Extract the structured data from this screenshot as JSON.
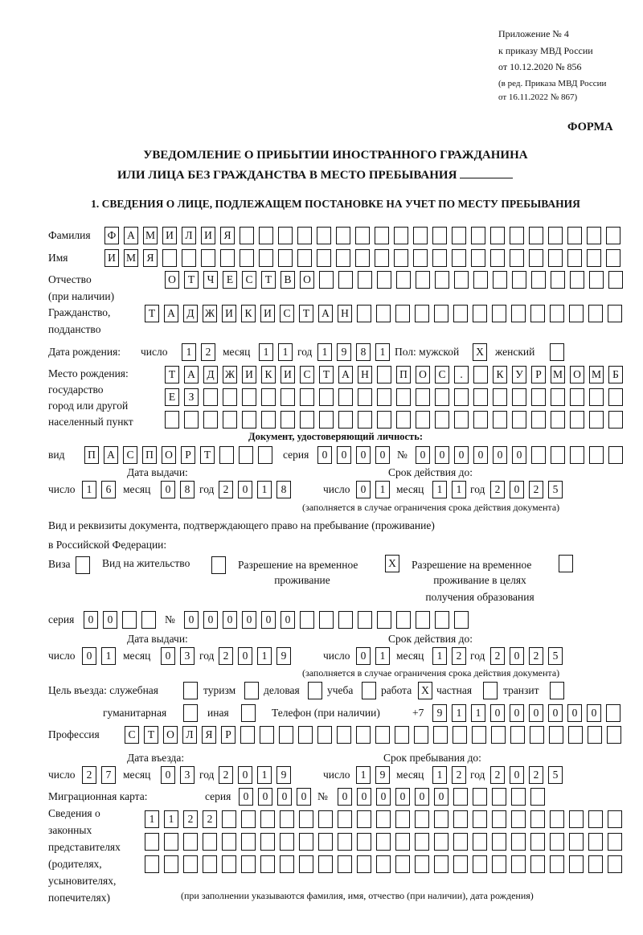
{
  "header": {
    "annex": [
      "Приложение № 4",
      "к приказу МВД России",
      "от 10.12.2020 № 856"
    ],
    "edition": [
      "(в ред. Приказа МВД России",
      "от 16.11.2022 № 867)"
    ],
    "form_label": "ФОРМА",
    "title_line1": "УВЕДОМЛЕНИЕ О ПРИБЫТИИ ИНОСТРАННОГО ГРАЖДАНИНА",
    "title_line2": "ИЛИ ЛИЦА БЕЗ ГРАЖДАНСТВА В МЕСТО ПРЕБЫВАНИЯ",
    "section1": "1. СВЕДЕНИЯ О ЛИЦЕ, ПОДЛЕЖАЩЕМ ПОСТАНОВКЕ НА УЧЕТ ПО МЕСТУ ПРЕБЫВАНИЯ"
  },
  "labels": {
    "surname": "Фамилия",
    "name": "Имя",
    "patronymic": "Отчество",
    "patronymic_note": "(при наличии)",
    "citizenship": "Гражданство,",
    "citizenship2": "подданство",
    "birth_date": "Дата рождения:",
    "day": "число",
    "month": "месяц",
    "year": "год",
    "sex": "Пол: мужской",
    "female": "женский",
    "birthplace": [
      "Место рождения:",
      "государство",
      "город или другой",
      "населенный пункт"
    ],
    "id_doc": "Документ, удостоверяющий личность:",
    "kind": "вид",
    "series": "серия",
    "number": "№",
    "issue_date": "Дата выдачи:",
    "valid_until": "Срок действия до:",
    "validity_note": "(заполняется в случае ограничения срока действия документа)",
    "residence_doc": "Вид и реквизиты документа, подтверждающего право на пребывание (проживание)",
    "residence_doc2": "в Российской Федерации:",
    "visa": "Виза",
    "residence_permit": "Вид на жительство",
    "temp_residence": [
      "Разрешение на временное",
      "проживание"
    ],
    "temp_residence_edu": [
      "Разрешение на временное",
      "проживание в целях",
      "получения образования"
    ],
    "purpose": "Цель въезда: служебная",
    "tourism": "туризм",
    "business": "деловая",
    "study": "учеба",
    "work": "работа",
    "private": "частная",
    "transit": "транзит",
    "humanitarian": "гуманитарная",
    "other": "иная",
    "phone": "Телефон (при наличии)",
    "phone_prefix": "+7",
    "profession": "Профессия",
    "entry_date": "Дата въезда:",
    "stay_until": "Срок пребывания до:",
    "migration_card": "Миграционная карта:",
    "representatives": [
      "Сведения о",
      "законных",
      "представителях",
      "(родителях,",
      "усыновителях,",
      "попечителях)"
    ],
    "representatives_note": "(при заполнении указываются фамилия, имя, отчество (при наличии), дата рождения)"
  },
  "person": {
    "surname": "ФАМИЛИЯ",
    "name": "ИМЯ",
    "patronymic": "ОТЧЕСТВО",
    "citizenship": "ТАДЖИКИСТАН",
    "birth_day": "12",
    "birth_month": "11",
    "birth_year": "1981",
    "sex_male": "X",
    "sex_female": "",
    "birthplace_line1": "ТАДЖИКИСТАН ПОС. КУРМОМБ",
    "birthplace_line2": "ЕЗ",
    "birthplace_line3": ""
  },
  "id_document": {
    "kind": "ПАСПОРТ",
    "series": "0000",
    "number": "000000",
    "issue_day": "16",
    "issue_month": "08",
    "issue_year": "2018",
    "valid_day": "01",
    "valid_month": "11",
    "valid_year": "2025"
  },
  "residence_document": {
    "visa": "",
    "residence_permit": "",
    "temp_residence": "X",
    "temp_residence_edu": "",
    "series": "00",
    "number": "000000",
    "issue_day": "01",
    "issue_month": "03",
    "issue_year": "2019",
    "valid_day": "01",
    "valid_month": "12",
    "valid_year": "2025"
  },
  "purpose": {
    "official": "",
    "tourism": "",
    "business": "",
    "study": "",
    "work": "X",
    "private": "",
    "transit": "",
    "humanitarian": "",
    "other": ""
  },
  "phone": "911000000",
  "profession": "СТОЛЯР",
  "entry": {
    "entry_day": "27",
    "entry_month": "03",
    "entry_year": "2019",
    "stay_day": "19",
    "stay_month": "12",
    "stay_year": "2025"
  },
  "migration_card": {
    "series": "0000",
    "number": "000000"
  },
  "representatives": {
    "line1": "1122",
    "line2": "",
    "line3": ""
  }
}
